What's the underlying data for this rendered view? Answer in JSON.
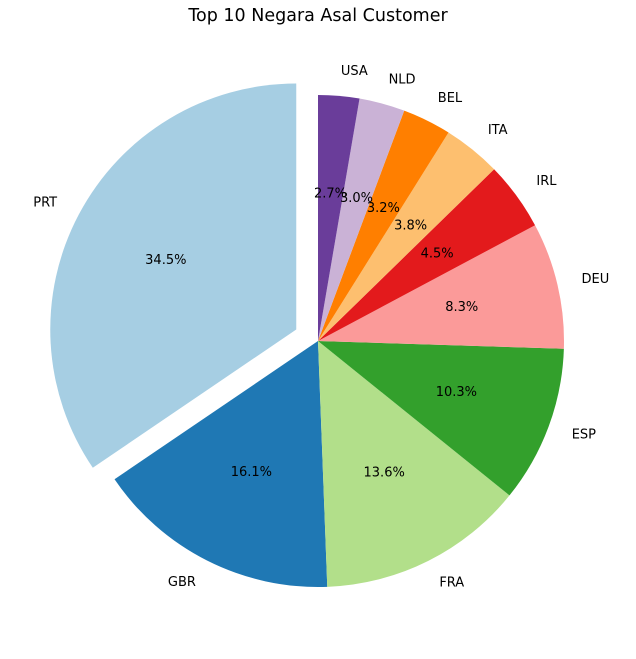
{
  "chart_data": {
    "type": "pie",
    "title": "Top 10 Negara Asal Customer",
    "categories": [
      "PRT",
      "GBR",
      "FRA",
      "ESP",
      "DEU",
      "IRL",
      "ITA",
      "BEL",
      "NLD",
      "USA"
    ],
    "values": [
      34.5,
      16.1,
      13.6,
      10.3,
      8.3,
      4.5,
      3.8,
      3.2,
      3.0,
      2.7
    ],
    "percent_labels": [
      "34.5%",
      "16.1%",
      "13.6%",
      "10.3%",
      "8.3%",
      "4.5%",
      "3.8%",
      "3.2%",
      "3.0%",
      "2.7%"
    ],
    "colors": [
      "#a6cee3",
      "#1f78b4",
      "#b2df8a",
      "#33a02c",
      "#fb9a99",
      "#e31a1c",
      "#fdbf6f",
      "#ff7f00",
      "#cab2d6",
      "#6a3d9a"
    ],
    "exploded": [
      "PRT"
    ],
    "start_angle_deg": 90,
    "direction": "counterclockwise",
    "legend": "none"
  }
}
